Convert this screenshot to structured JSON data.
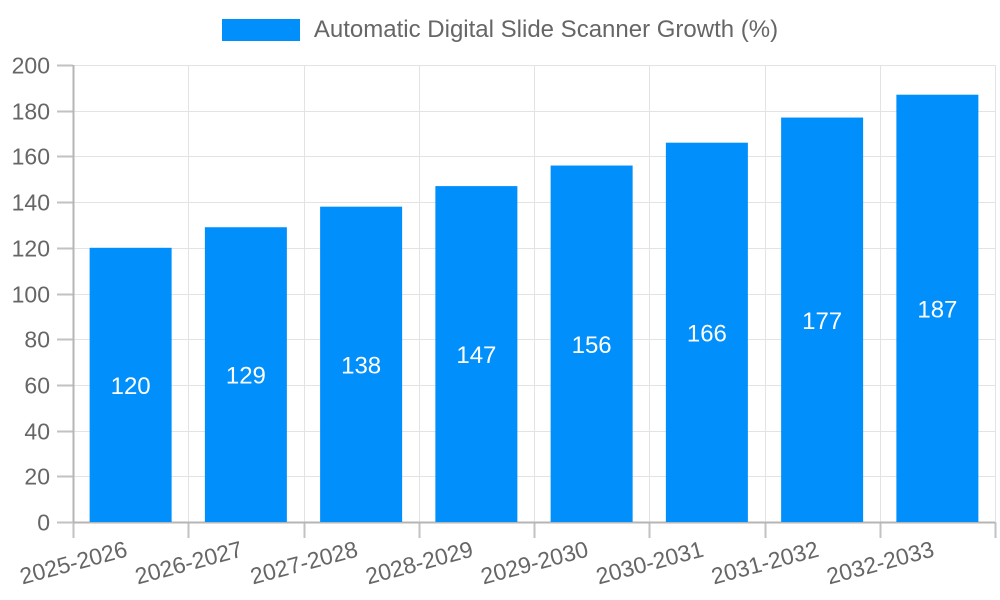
{
  "colors": {
    "bar": "#008FFB",
    "text": "#666666",
    "grid": "#e3e3e3",
    "axis": "#b5b5b5",
    "tick": "#c2c2c2",
    "data_label": "#ffffff",
    "background": "#ffffff"
  },
  "chart_data": {
    "type": "bar",
    "title": "Automatic Digital Slide Scanner Growth (%)",
    "categories": [
      "2025-2026",
      "2026-2027",
      "2027-2028",
      "2028-2029",
      "2029-2030",
      "2030-2031",
      "2031-2032",
      "2032-2033"
    ],
    "values": [
      120,
      129,
      138,
      147,
      156,
      166,
      177,
      187
    ],
    "xlabel": "",
    "ylabel": "",
    "ylim": [
      0,
      200
    ],
    "ytick_step": 20,
    "ytick_labels": [
      "0",
      "20",
      "40",
      "60",
      "80",
      "100",
      "120",
      "140",
      "160",
      "180",
      "200"
    ],
    "grid": true,
    "legend_position": "top",
    "data_labels": {
      "position": "center",
      "color": "#ffffff"
    },
    "x_tick_rotation_deg": -15
  }
}
